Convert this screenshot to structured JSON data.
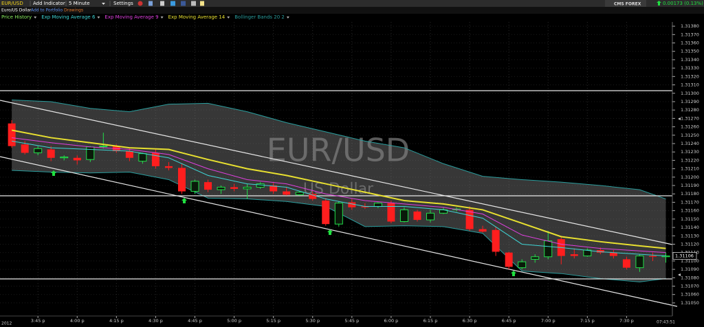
{
  "toolbar": {
    "symbol": "EUR/USD",
    "add_indicator": "Add Indicator",
    "interval": "5 Minute",
    "settings": "Settings",
    "brand": "CMS FOREX",
    "change": "0.00173 (0.13%)"
  },
  "subbar": {
    "name": "Euro/US Dollar",
    "add_portfolio": "Add to Portfolio",
    "drawings": "Drawings"
  },
  "chart_data": {
    "type": "candlestick",
    "watermark": "EUR/USD",
    "watermark_sub": "US Dollar",
    "price_name": "Price History",
    "price_color": "#8cf060",
    "up_color": "#22e04a",
    "down_color": "#ff1e1e",
    "open": [
      1.31264,
      1.31239,
      1.31229,
      1.31233,
      1.31223,
      1.31223,
      1.31221,
      1.31237,
      1.31237,
      1.31231,
      1.31219,
      1.31229,
      1.31213,
      1.31211,
      1.31183,
      1.31194,
      1.31185,
      1.31188,
      1.31186,
      1.31188,
      1.3119,
      1.31183,
      1.31179,
      1.3118,
      1.31172,
      1.31144,
      1.3117,
      1.31165,
      1.31165,
      1.31169,
      1.31147,
      1.31159,
      1.31149,
      1.31157,
      1.31161,
      1.31161,
      1.31138,
      1.31137,
      1.3111,
      1.31092,
      1.31102,
      1.31105,
      1.31126,
      1.31108,
      1.31106,
      1.31113,
      1.3111,
      1.31102,
      1.31092,
      1.31106,
      1.31105
    ],
    "high": [
      1.31268,
      1.31243,
      1.31237,
      1.31237,
      1.31226,
      1.31226,
      1.31237,
      1.31253,
      1.31239,
      1.31234,
      1.31229,
      1.31233,
      1.31218,
      1.31216,
      1.31197,
      1.31197,
      1.3119,
      1.31192,
      1.31192,
      1.31194,
      1.31193,
      1.31188,
      1.31183,
      1.31183,
      1.31175,
      1.31171,
      1.31174,
      1.31169,
      1.3117,
      1.31172,
      1.31164,
      1.31161,
      1.31161,
      1.31164,
      1.31164,
      1.31165,
      1.31142,
      1.31141,
      1.31111,
      1.31102,
      1.31108,
      1.31136,
      1.31129,
      1.31115,
      1.31115,
      1.31116,
      1.31113,
      1.31105,
      1.31108,
      1.3111,
      1.3111
    ],
    "low": [
      1.31235,
      1.31227,
      1.31226,
      1.31219,
      1.3122,
      1.31215,
      1.31218,
      1.31234,
      1.31229,
      1.31219,
      1.31216,
      1.3121,
      1.31208,
      1.3118,
      1.3118,
      1.31182,
      1.3118,
      1.31183,
      1.31174,
      1.31186,
      1.3118,
      1.31178,
      1.31178,
      1.31172,
      1.31142,
      1.31141,
      1.31161,
      1.31162,
      1.31163,
      1.31145,
      1.31146,
      1.31147,
      1.31146,
      1.31156,
      1.31159,
      1.31136,
      1.31134,
      1.31106,
      1.3109,
      1.3109,
      1.31098,
      1.31102,
      1.31096,
      1.31103,
      1.31105,
      1.31108,
      1.31103,
      1.3109,
      1.31087,
      1.311,
      1.31098
    ],
    "close": [
      1.31237,
      1.31229,
      1.31234,
      1.31223,
      1.31224,
      1.3122,
      1.31236,
      1.31237,
      1.31231,
      1.31223,
      1.31228,
      1.31213,
      1.31211,
      1.31183,
      1.31195,
      1.31185,
      1.31188,
      1.31186,
      1.31188,
      1.31192,
      1.31183,
      1.31179,
      1.31182,
      1.31174,
      1.31144,
      1.31169,
      1.31164,
      1.31164,
      1.31169,
      1.31147,
      1.31161,
      1.31149,
      1.31157,
      1.31161,
      1.31162,
      1.31138,
      1.31135,
      1.31111,
      1.31093,
      1.31099,
      1.31105,
      1.31124,
      1.31106,
      1.31106,
      1.31113,
      1.3111,
      1.31106,
      1.31092,
      1.31106,
      1.31105,
      1.31106
    ],
    "indicator_x": [
      0,
      3,
      6,
      9,
      12,
      15,
      18,
      21,
      24,
      27,
      30,
      33,
      36,
      39,
      42,
      45,
      48,
      50
    ],
    "series": [
      {
        "name": "Exp Moving Average 6",
        "color": "#3fd6d6",
        "values": [
          1.31243,
          1.31235,
          1.31233,
          1.31231,
          1.31223,
          1.31202,
          1.31192,
          1.31188,
          1.31174,
          1.31165,
          1.31165,
          1.31161,
          1.31151,
          1.3112,
          1.31116,
          1.31111,
          1.31108,
          1.31106
        ]
      },
      {
        "name": "Exp Moving Average 9",
        "color": "#e040e0",
        "values": [
          1.31247,
          1.31241,
          1.31236,
          1.31233,
          1.31227,
          1.3121,
          1.31197,
          1.31192,
          1.3118,
          1.31172,
          1.31168,
          1.31164,
          1.31156,
          1.31131,
          1.3112,
          1.31115,
          1.31112,
          1.3111
        ]
      },
      {
        "name": "Exp Moving Average 14",
        "color": "#e8e030",
        "values": [
          1.31256,
          1.31247,
          1.31241,
          1.31235,
          1.31233,
          1.31221,
          1.3121,
          1.31202,
          1.31192,
          1.31182,
          1.31172,
          1.31168,
          1.31161,
          1.31145,
          1.31129,
          1.31123,
          1.31118,
          1.31115
        ]
      }
    ],
    "bands": {
      "name": "Bollinger Bands 20 2",
      "color": "#2a9d9d",
      "upper": [
        1.31292,
        1.3129,
        1.31282,
        1.31278,
        1.31287,
        1.31288,
        1.31278,
        1.31265,
        1.31254,
        1.31243,
        1.31235,
        1.31216,
        1.31201,
        1.31197,
        1.31194,
        1.3119,
        1.31185,
        1.31174
      ],
      "lower": [
        1.31208,
        1.31206,
        1.31205,
        1.31206,
        1.31197,
        1.31175,
        1.31174,
        1.31171,
        1.31165,
        1.31141,
        1.31142,
        1.31141,
        1.31133,
        1.31088,
        1.31085,
        1.31079,
        1.31075,
        1.31079
      ]
    },
    "last_value": 1.31106,
    "xlim": [
      -0.9,
      50.5
    ],
    "xticks": [
      {
        "value": 2,
        "label": "3:45 p"
      },
      {
        "value": 5,
        "label": "4:00 p"
      },
      {
        "value": 8,
        "label": "4:15 p"
      },
      {
        "value": 11,
        "label": "4:30 p"
      },
      {
        "value": 14,
        "label": "4:45 p"
      },
      {
        "value": 17,
        "label": "5:00 p"
      },
      {
        "value": 20,
        "label": "5:15 p"
      },
      {
        "value": 23,
        "label": "5:30 p"
      },
      {
        "value": 26,
        "label": "5:45 p"
      },
      {
        "value": 29,
        "label": "6:00 p"
      },
      {
        "value": 32,
        "label": "6:15 p"
      },
      {
        "value": 35,
        "label": "6:30 p"
      },
      {
        "value": 38,
        "label": "6:45 p"
      },
      {
        "value": 41,
        "label": "7:00 p"
      },
      {
        "value": 44,
        "label": "7:15 p"
      },
      {
        "value": 47,
        "label": "7:30 p"
      }
    ],
    "ylim": [
      1.31036,
      1.31385
    ],
    "yticks": [
      {
        "value": 1.3105,
        "label": "1.31050"
      },
      {
        "value": 1.3106,
        "label": "1.31060"
      },
      {
        "value": 1.3107,
        "label": "1.31070"
      },
      {
        "value": 1.3108,
        "label": "1.31080"
      },
      {
        "value": 1.3109,
        "label": "1.31090"
      },
      {
        "value": 1.311,
        "label": "1.31100"
      },
      {
        "value": 1.3111,
        "label": "1.31110"
      },
      {
        "value": 1.3112,
        "label": "1.31120"
      },
      {
        "value": 1.3113,
        "label": "1.31130"
      },
      {
        "value": 1.3114,
        "label": "1.31140"
      },
      {
        "value": 1.3115,
        "label": "1.31150"
      },
      {
        "value": 1.3116,
        "label": "1.31160"
      },
      {
        "value": 1.3117,
        "label": "1.31170"
      },
      {
        "value": 1.3118,
        "label": "1.31180"
      },
      {
        "value": 1.3119,
        "label": "1.31190"
      },
      {
        "value": 1.312,
        "label": "1.31200"
      },
      {
        "value": 1.3121,
        "label": "1.31210"
      },
      {
        "value": 1.3122,
        "label": "1.31220"
      },
      {
        "value": 1.3123,
        "label": "1.31230"
      },
      {
        "value": 1.3124,
        "label": "1.31240"
      },
      {
        "value": 1.3125,
        "label": "1.31250"
      },
      {
        "value": 1.3126,
        "label": "1.31260"
      },
      {
        "value": 1.3127,
        "label": "1.31270"
      },
      {
        "value": 1.3128,
        "label": "1.31280"
      },
      {
        "value": 1.3129,
        "label": "1.31290"
      },
      {
        "value": 1.313,
        "label": "1.31300"
      },
      {
        "value": 1.3131,
        "label": "1.31310"
      },
      {
        "value": 1.3132,
        "label": "1.31320"
      },
      {
        "value": 1.3133,
        "label": "1.31330"
      },
      {
        "value": 1.3134,
        "label": "1.31340"
      },
      {
        "value": 1.3135,
        "label": "1.31350"
      },
      {
        "value": 1.3136,
        "label": "1.31360"
      },
      {
        "value": 1.3137,
        "label": "1.31370"
      },
      {
        "value": 1.3138,
        "label": "1.31380"
      }
    ],
    "grid": true,
    "year_label": "2012",
    "timestamp": "07:43:51"
  }
}
